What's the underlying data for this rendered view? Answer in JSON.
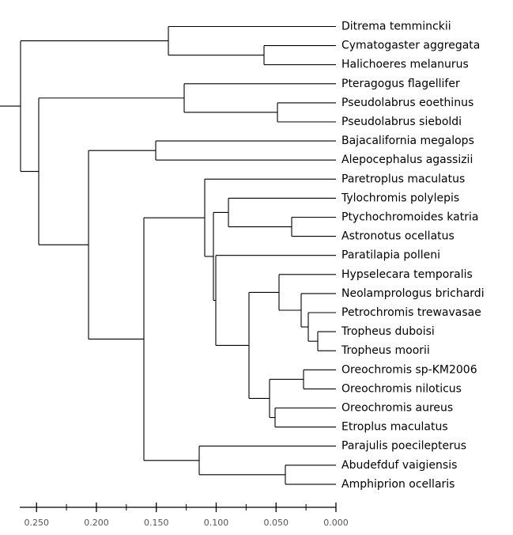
{
  "tree": {
    "type": "phylogenetic-tree",
    "leaves": [
      "Ditrema temminckii",
      "Cymatogaster aggregata",
      "Halichoeres melanurus",
      "Pteragogus flagellifer",
      "Pseudolabrus eoethinus",
      "Pseudolabrus sieboldi",
      "Bajacalifornia megalops",
      "Alepocephalus agassizii",
      "Paretroplus maculatus",
      "Tylochromis polylepis",
      "Ptychochromoides katria",
      "Astronotus ocellatus",
      "Paratilapia polleni",
      "Hypselecara temporalis",
      "Neolamprologus brichardi",
      "Petrochromis trewavasae",
      "Tropheus duboisi",
      "Tropheus moorii",
      "Oreochromis sp-KM2006",
      "Oreochromis niloticus",
      "Oreochromis aureus",
      "Etroplus maculatus",
      "Parajulis poecilepterus",
      "Abudefduf vaigiensis",
      "Amphiprion ocellaris"
    ],
    "axis": {
      "ticks": [
        "0.250",
        "0.200",
        "0.150",
        "0.100",
        "0.050",
        "0.000"
      ],
      "range": [
        0.264,
        0.0
      ]
    }
  }
}
